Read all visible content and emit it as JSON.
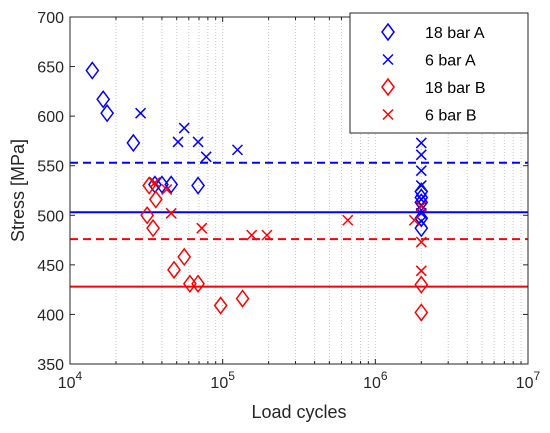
{
  "chart_data": {
    "type": "scatter",
    "xlabel": "Load cycles",
    "ylabel": "Stress [MPa]",
    "xscale": "log",
    "xlim": [
      10000,
      10000000
    ],
    "ylim": [
      350,
      700
    ],
    "grid": "x-log-dotted",
    "legend_position": "top-right",
    "xticks": [
      {
        "value": 10000,
        "base": "10",
        "exp": "4"
      },
      {
        "value": 100000,
        "base": "10",
        "exp": "5"
      },
      {
        "value": 1000000,
        "base": "10",
        "exp": "6"
      },
      {
        "value": 10000000,
        "base": "10",
        "exp": "7"
      }
    ],
    "yticks": [
      "350",
      "400",
      "450",
      "500",
      "550",
      "600",
      "650",
      "700"
    ],
    "series": [
      {
        "name": "18 bar A",
        "marker": "diamond",
        "color": "#0000ff",
        "points": [
          [
            14000,
            646
          ],
          [
            16500,
            617
          ],
          [
            17500,
            603
          ],
          [
            26000,
            573
          ],
          [
            36000,
            531
          ],
          [
            40000,
            531
          ],
          [
            46000,
            531
          ],
          [
            69000,
            530
          ],
          [
            2000000,
            524
          ],
          [
            2000000,
            518
          ],
          [
            2000000,
            513
          ],
          [
            2000000,
            497
          ],
          [
            2000000,
            487
          ]
        ]
      },
      {
        "name": "6 bar A",
        "marker": "x",
        "color": "#0000ff",
        "points": [
          [
            29000,
            603
          ],
          [
            51000,
            574
          ],
          [
            56000,
            588
          ],
          [
            69000,
            574
          ],
          [
            78000,
            559
          ],
          [
            125000,
            566
          ],
          [
            2000000,
            573
          ],
          [
            2000000,
            561
          ],
          [
            2000000,
            545
          ],
          [
            2000000,
            530
          ],
          [
            2000000,
            516
          ],
          [
            2000000,
            510
          ],
          [
            2000000,
            502
          ],
          [
            2000000,
            494
          ]
        ]
      },
      {
        "name": "18 bar B",
        "marker": "diamond",
        "color": "#ff0000",
        "points": [
          [
            33000,
            530
          ],
          [
            36500,
            516
          ],
          [
            32000,
            500
          ],
          [
            35000,
            487
          ],
          [
            48000,
            445
          ],
          [
            56000,
            458
          ],
          [
            61000,
            431
          ],
          [
            69000,
            431
          ],
          [
            97000,
            409
          ],
          [
            135000,
            416
          ],
          [
            2000000,
            430
          ],
          [
            2000000,
            402
          ]
        ]
      },
      {
        "name": "6 bar B",
        "marker": "x",
        "color": "#ff0000",
        "points": [
          [
            36000,
            533
          ],
          [
            43000,
            526
          ],
          [
            46000,
            502
          ],
          [
            73000,
            487
          ],
          [
            155000,
            480
          ],
          [
            195000,
            480
          ],
          [
            660000,
            495
          ],
          [
            1800000,
            495
          ],
          [
            2000000,
            509
          ],
          [
            2000000,
            473
          ],
          [
            2000000,
            444
          ]
        ]
      }
    ],
    "reference_lines": [
      {
        "y": 553,
        "color": "#0000ff",
        "style": "dashed"
      },
      {
        "y": 503,
        "color": "#0000ff",
        "style": "solid"
      },
      {
        "y": 476,
        "color": "#ff0000",
        "style": "dashed"
      },
      {
        "y": 428,
        "color": "#ff0000",
        "style": "solid"
      }
    ]
  }
}
